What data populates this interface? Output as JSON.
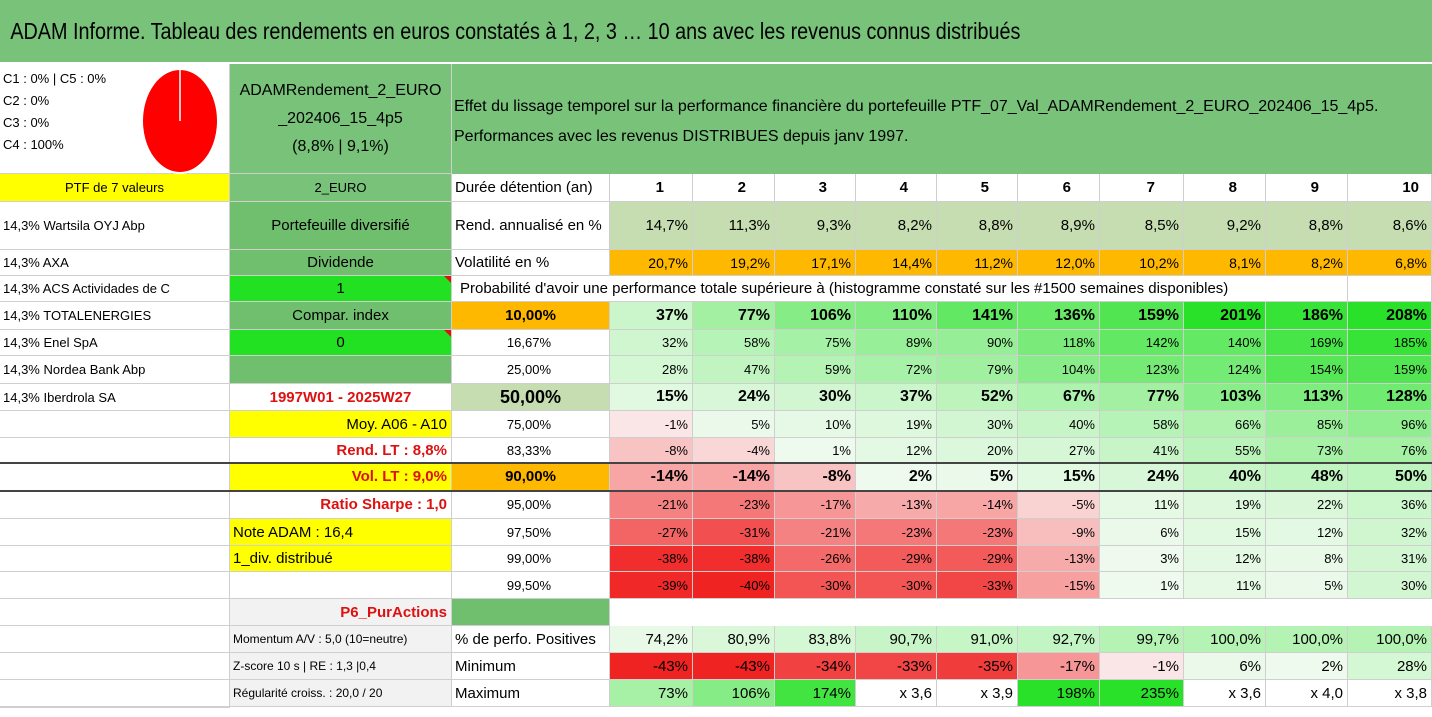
{
  "title": "ADAM Informe. Tableau des rendements en euros constatés à 1, 2, 3 … 10 ans avec les revenus connus distribués",
  "composition": {
    "line1": "C1 : 0% | C5 : 0%",
    "line2": "C2 : 0%",
    "line3": "C3 : 0%",
    "line4": "C4 : 100%"
  },
  "pie": {
    "c4_share": 1.0,
    "color": "#ff0000"
  },
  "portfolio": {
    "name1": "ADAMRendement_2_EURO",
    "name2": "_202406_15_4p5",
    "perf": "(8,8% | 9,1%)"
  },
  "info": {
    "line1": "Effet du lissage temporel sur la performance financière du portefeuille PTF_07_Val_ADAMRendement_2_EURO_202406_15_4p5.",
    "line2": "Performances avec les revenus DISTRIBUES depuis janv 1997."
  },
  "ptf_header": "PTF de 7 valeurs",
  "currency": "2_EURO",
  "holdings": [
    "14,3% Wartsila OYJ Abp",
    "14,3% AXA",
    "14,3% ACS Actividades de C",
    "14,3% TOTALENERGIES",
    "14,3% Enel SpA",
    "14,3% Nordea Bank Abp",
    "14,3% Iberdrola SA"
  ],
  "side": {
    "diversified": "Portefeuille diversifié",
    "dividende": "Dividende",
    "div_value": "1",
    "compar": "Compar. index",
    "compar_value": "0",
    "period": "1997W01 - 2025W27",
    "moy": "Moy. A06 - A10",
    "rend_lt": "Rend. LT : 8,8%",
    "vol_lt": "Vol. LT : 9,0%",
    "sharpe": "Ratio Sharpe : 1,0",
    "note": "Note ADAM : 16,4",
    "div_distrib": "1_div. distribué",
    "p6": "P6_PurActions",
    "momentum": "Momentum A/V : 5,0 (10=neutre)",
    "zscore": "Z-score 10 s | RE : 1,3 |0,4",
    "regularite": "Régularité croiss. : 20,0 / 20"
  },
  "duree_label": "Durée détention (an)",
  "years": [
    "1",
    "2",
    "3",
    "4",
    "5",
    "6",
    "7",
    "8",
    "9",
    "10"
  ],
  "rend_label": "Rend. annualisé en %",
  "rend": [
    "14,7%",
    "11,3%",
    "9,3%",
    "8,2%",
    "8,8%",
    "8,9%",
    "8,5%",
    "9,2%",
    "8,8%",
    "8,6%"
  ],
  "vol_label": "Volatilité en %",
  "vol": [
    "20,7%",
    "19,2%",
    "17,1%",
    "14,4%",
    "11,2%",
    "12,0%",
    "10,2%",
    "8,1%",
    "8,2%",
    "6,8%"
  ],
  "proba_title": "Probabilité d'avoir une performance totale supérieure à (histogramme constaté sur les #1500 semaines disponibles)",
  "proba_rows": [
    {
      "p": "10,00%",
      "v": [
        "37%",
        "77%",
        "106%",
        "110%",
        "141%",
        "136%",
        "159%",
        "201%",
        "186%",
        "208%"
      ]
    },
    {
      "p": "16,67%",
      "v": [
        "32%",
        "58%",
        "75%",
        "89%",
        "90%",
        "118%",
        "142%",
        "140%",
        "169%",
        "185%"
      ]
    },
    {
      "p": "25,00%",
      "v": [
        "28%",
        "47%",
        "59%",
        "72%",
        "79%",
        "104%",
        "123%",
        "124%",
        "154%",
        "159%"
      ]
    },
    {
      "p": "50,00%",
      "v": [
        "15%",
        "24%",
        "30%",
        "37%",
        "52%",
        "67%",
        "77%",
        "103%",
        "113%",
        "128%"
      ]
    },
    {
      "p": "75,00%",
      "v": [
        "-1%",
        "5%",
        "10%",
        "19%",
        "30%",
        "40%",
        "58%",
        "66%",
        "85%",
        "96%"
      ]
    },
    {
      "p": "83,33%",
      "v": [
        "-8%",
        "-4%",
        "1%",
        "12%",
        "20%",
        "27%",
        "41%",
        "55%",
        "73%",
        "76%"
      ]
    },
    {
      "p": "90,00%",
      "v": [
        "-14%",
        "-14%",
        "-8%",
        "2%",
        "5%",
        "15%",
        "24%",
        "40%",
        "48%",
        "50%"
      ]
    },
    {
      "p": "95,00%",
      "v": [
        "-21%",
        "-23%",
        "-17%",
        "-13%",
        "-14%",
        "-5%",
        "11%",
        "19%",
        "22%",
        "36%"
      ]
    },
    {
      "p": "97,50%",
      "v": [
        "-27%",
        "-31%",
        "-21%",
        "-23%",
        "-23%",
        "-9%",
        "6%",
        "15%",
        "12%",
        "32%"
      ]
    },
    {
      "p": "99,00%",
      "v": [
        "-38%",
        "-38%",
        "-26%",
        "-29%",
        "-29%",
        "-13%",
        "3%",
        "12%",
        "8%",
        "31%"
      ]
    },
    {
      "p": "99,50%",
      "v": [
        "-39%",
        "-40%",
        "-30%",
        "-30%",
        "-33%",
        "-15%",
        "1%",
        "11%",
        "5%",
        "30%"
      ]
    }
  ],
  "pos_label": "% de perfo. Positives",
  "pos": [
    "74,2%",
    "80,9%",
    "83,8%",
    "90,7%",
    "91,0%",
    "92,7%",
    "99,7%",
    "100,0%",
    "100,0%",
    "100,0%"
  ],
  "min_label": "Minimum",
  "min": [
    "-43%",
    "-43%",
    "-34%",
    "-33%",
    "-35%",
    "-17%",
    "-1%",
    "6%",
    "2%",
    "28%"
  ],
  "max_label": "Maximum",
  "max": [
    "73%",
    "106%",
    "174%",
    "x 3,6",
    "x 3,9",
    "198%",
    "235%",
    "x 3,6",
    "x 4,0",
    "x 3,8"
  ]
}
